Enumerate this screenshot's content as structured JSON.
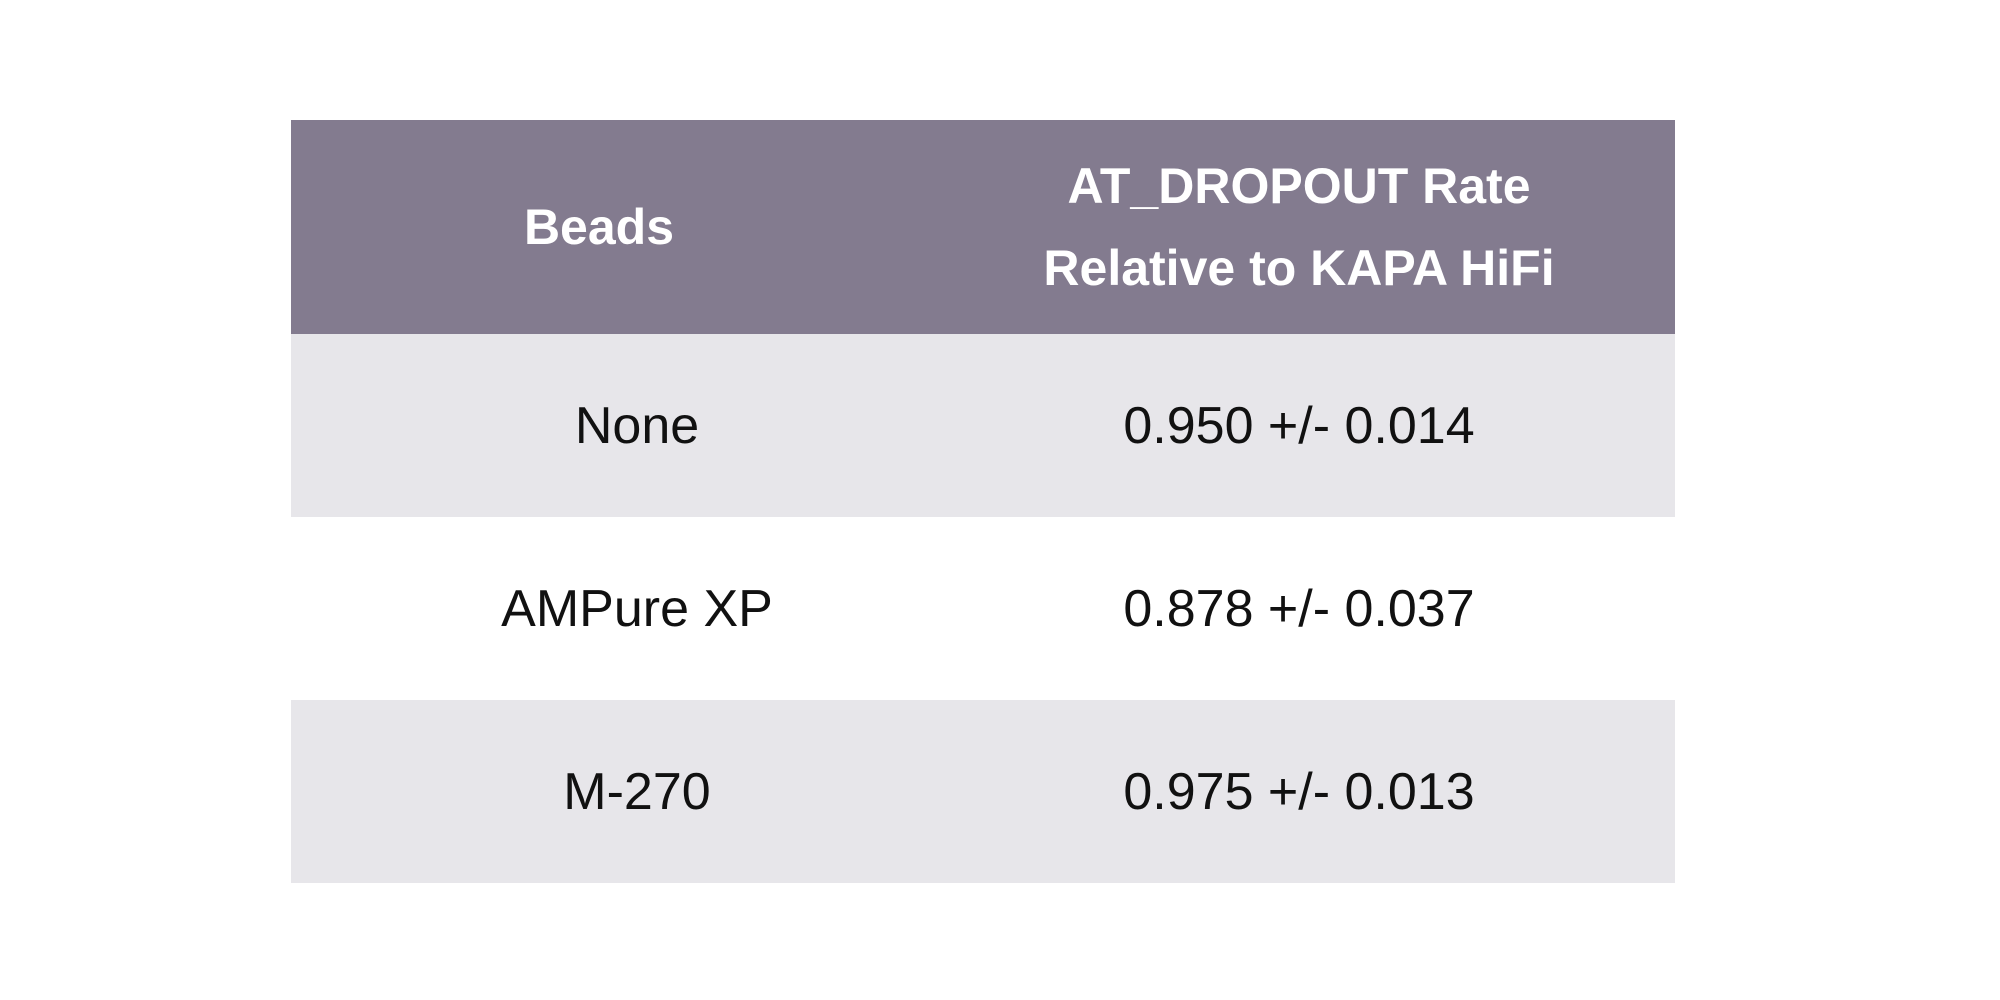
{
  "table": {
    "headers": {
      "beads": "Beads",
      "rate_line1": "AT_DROPOUT Rate",
      "rate_line2": "Relative to KAPA HiFi"
    },
    "rows": [
      {
        "beads": "None",
        "rate": "0.950 +/- 0.014"
      },
      {
        "beads": "AMPure XP",
        "rate": "0.878 +/- 0.037"
      },
      {
        "beads": "M-270",
        "rate": "0.975 +/- 0.013"
      }
    ],
    "colors": {
      "header_bg": "#837b8f",
      "header_text": "#ffffff",
      "shaded_row_bg": "#e7e6ea",
      "plain_row_bg": "#ffffff",
      "cell_text": "#111111"
    }
  }
}
